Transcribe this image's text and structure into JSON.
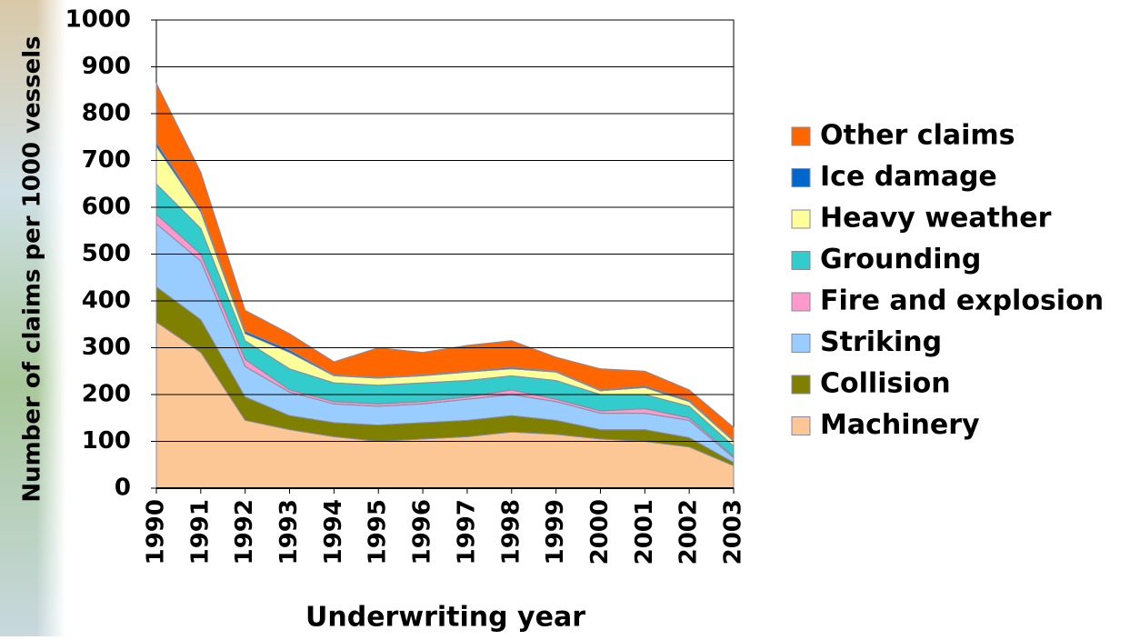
{
  "chart_data": {
    "type": "stacked-area",
    "x_label": "Underwriting year",
    "y_label": "Number of claims per 1000 vessels",
    "x": [
      1990,
      1991,
      1992,
      1993,
      1994,
      1995,
      1996,
      1997,
      1998,
      1999,
      2000,
      2001,
      2002,
      2003
    ],
    "xlim": [
      1990,
      2003
    ],
    "ylim": [
      0,
      1000
    ],
    "yticks": [
      0,
      100,
      200,
      300,
      400,
      500,
      600,
      700,
      800,
      900,
      1000
    ],
    "grid": true,
    "legend": "right",
    "series": [
      {
        "name": "Machinery",
        "color": "#fcc795",
        "values": [
          355,
          290,
          145,
          125,
          110,
          100,
          105,
          110,
          120,
          115,
          105,
          100,
          88,
          48
        ]
      },
      {
        "name": "Collision",
        "color": "#7f7f00",
        "values": [
          75,
          70,
          50,
          30,
          30,
          35,
          35,
          35,
          35,
          30,
          20,
          25,
          20,
          7
        ]
      },
      {
        "name": "Striking",
        "color": "#99ccff",
        "values": [
          135,
          125,
          65,
          50,
          40,
          40,
          40,
          45,
          45,
          40,
          35,
          35,
          37,
          10
        ]
      },
      {
        "name": "Fire and explosion",
        "color": "#ff99cc",
        "values": [
          20,
          15,
          15,
          5,
          5,
          5,
          5,
          5,
          10,
          5,
          5,
          10,
          5,
          3
        ]
      },
      {
        "name": "Grounding",
        "color": "#33cccc",
        "values": [
          65,
          55,
          40,
          45,
          40,
          40,
          40,
          35,
          30,
          40,
          35,
          30,
          25,
          22
        ]
      },
      {
        "name": "Heavy weather",
        "color": "#ffff99",
        "values": [
          80,
          35,
          15,
          35,
          15,
          15,
          15,
          18,
          15,
          18,
          8,
          15,
          10,
          10
        ]
      },
      {
        "name": "Ice damage",
        "color": "#0066cc",
        "values": [
          8,
          5,
          5,
          5,
          2,
          2,
          2,
          2,
          3,
          2,
          2,
          3,
          3,
          2
        ]
      },
      {
        "name": "Other claims",
        "color": "#ff6600",
        "values": [
          127,
          80,
          45,
          35,
          28,
          63,
          48,
          55,
          57,
          30,
          45,
          32,
          22,
          28
        ]
      }
    ]
  }
}
